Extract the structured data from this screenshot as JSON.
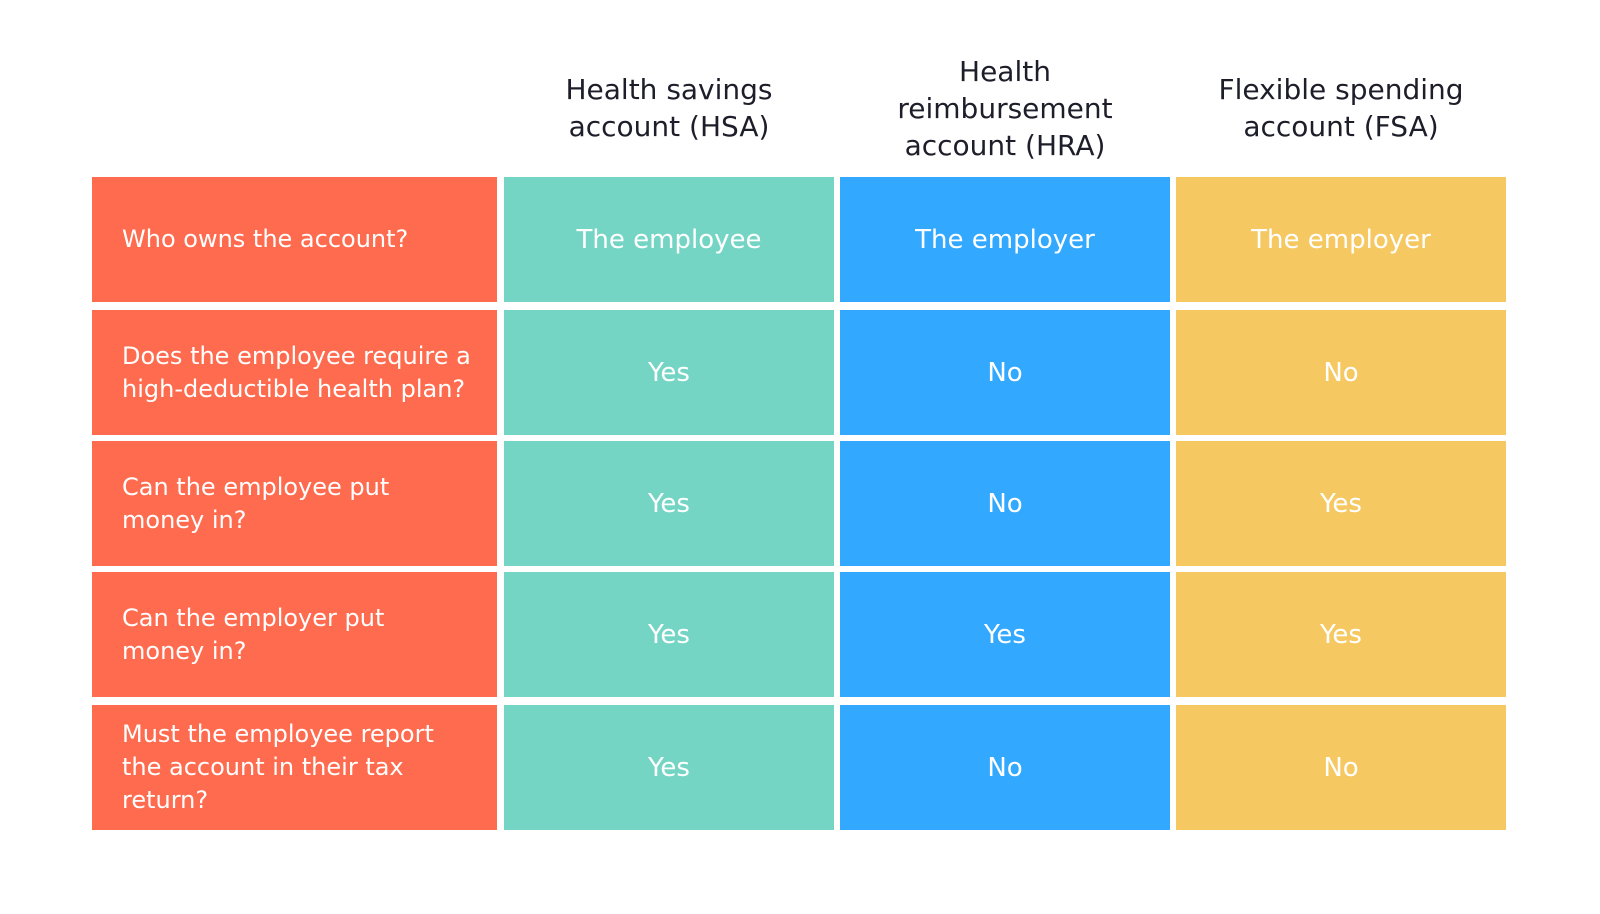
{
  "table": {
    "header": [
      "Health savings account (HSA)",
      "Health reimbursement account (HRA)",
      "Flexible spending account (FSA)"
    ],
    "rows": [
      [
        "Who owns the account?",
        "The employee",
        "The employer",
        "The employer"
      ],
      [
        "Does the employee require a high-deductible health plan?",
        "Yes",
        "No",
        "No"
      ],
      [
        "Can the employee put money in?",
        "Yes",
        "No",
        "Yes"
      ],
      [
        "Can the employer put money in?",
        "Yes",
        "Yes",
        "Yes"
      ],
      [
        "Must the employee report the account in their tax return?",
        "Yes",
        "No",
        "No"
      ]
    ]
  }
}
